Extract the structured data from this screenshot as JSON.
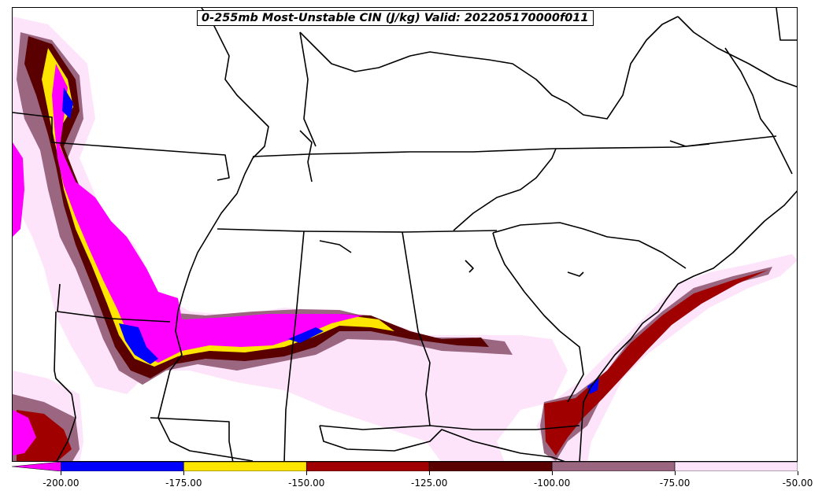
{
  "title": "0-255mb Most-Unstable CIN (J/kg) Valid: 202205170000f011",
  "colors": {
    "lt_-200": "#ff00ff",
    "-200_-175": "#0000ff",
    "-175_-150": "#ffe600",
    "-150_-125": "#a00000",
    "-125_-100": "#5a0000",
    "-100_-75": "#9a6680",
    "-75_-50": "#fde4fa"
  },
  "colorbar": {
    "min": -210,
    "max": -50,
    "segments": [
      {
        "from": -210,
        "to": -200,
        "color": "#ff00ff"
      },
      {
        "from": -200,
        "to": -175,
        "color": "#0000ff"
      },
      {
        "from": -175,
        "to": -150,
        "color": "#ffe600"
      },
      {
        "from": -150,
        "to": -125,
        "color": "#a00000"
      },
      {
        "from": -125,
        "to": -100,
        "color": "#5a0000"
      },
      {
        "from": -100,
        "to": -75,
        "color": "#9a6680"
      },
      {
        "from": -75,
        "to": -50,
        "color": "#fde4fa"
      }
    ],
    "ticks": [
      {
        "value": -200,
        "label": "-200.00"
      },
      {
        "value": -175,
        "label": "-175.00"
      },
      {
        "value": -150,
        "label": "-150.00"
      },
      {
        "value": -125,
        "label": "-125.00"
      },
      {
        "value": -100,
        "label": "-100.00"
      },
      {
        "value": -75,
        "label": "-75.00"
      },
      {
        "value": -50,
        "label": "-50.00"
      }
    ]
  }
}
